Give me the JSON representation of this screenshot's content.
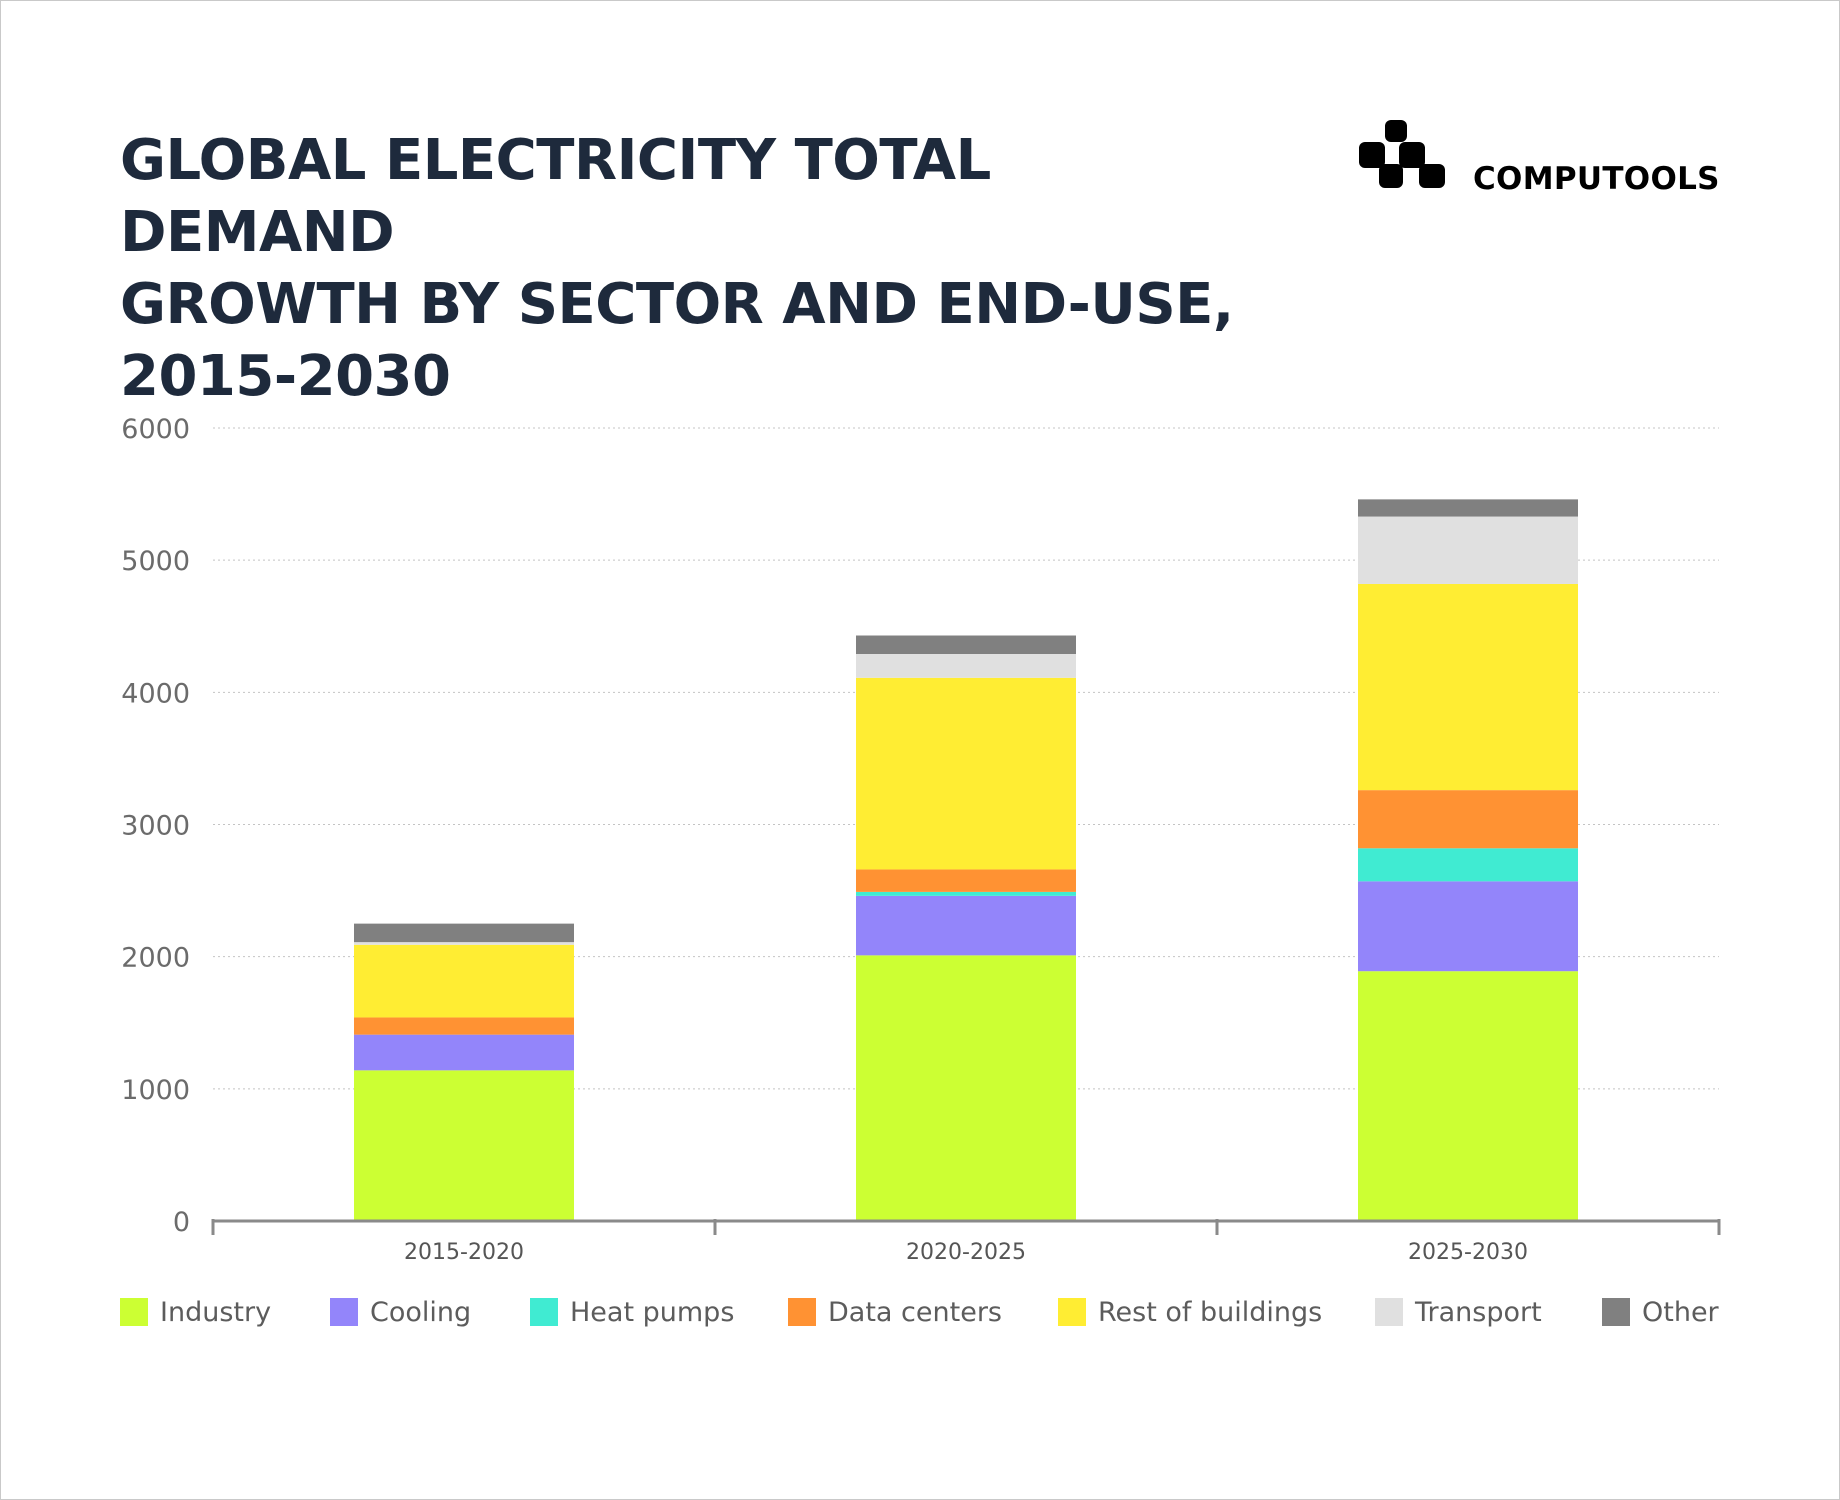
{
  "title_lines": [
    "GLOBAL ELECTRICITY TOTAL DEMAND",
    "GROWTH BY SECTOR AND END-USE,",
    "2015-2030"
  ],
  "brand": {
    "name": "COMPUTOOLS",
    "logo_icon": "computools-logo-icon"
  },
  "chart_data": {
    "type": "bar",
    "stacked": true,
    "title": "GLOBAL ELECTRICITY TOTAL DEMAND GROWTH BY SECTOR AND END-USE, 2015-2030",
    "categories": [
      "2015-2020",
      "2020-2025",
      "2025-2030"
    ],
    "ylim": [
      0,
      6000
    ],
    "yticks": [
      0,
      1000,
      2000,
      3000,
      4000,
      5000,
      6000
    ],
    "grid": true,
    "legend_position": "bottom",
    "series": [
      {
        "name": "Industry",
        "color": "#ccff33",
        "values": [
          1140,
          2010,
          1890
        ]
      },
      {
        "name": "Cooling",
        "color": "#9385fa",
        "values": [
          270,
          450,
          680
        ]
      },
      {
        "name": "Heat pumps",
        "color": "#40ebd2",
        "values": [
          0,
          30,
          250
        ]
      },
      {
        "name": "Data centers",
        "color": "#ff9233",
        "values": [
          130,
          170,
          440
        ]
      },
      {
        "name": "Rest of buildings",
        "color": "#ffed33",
        "values": [
          550,
          1450,
          1560
        ]
      },
      {
        "name": "Transport",
        "color": "#e0e0e0",
        "values": [
          20,
          180,
          510
        ]
      },
      {
        "name": "Other",
        "color": "#808080",
        "values": [
          140,
          140,
          130
        ]
      }
    ]
  }
}
